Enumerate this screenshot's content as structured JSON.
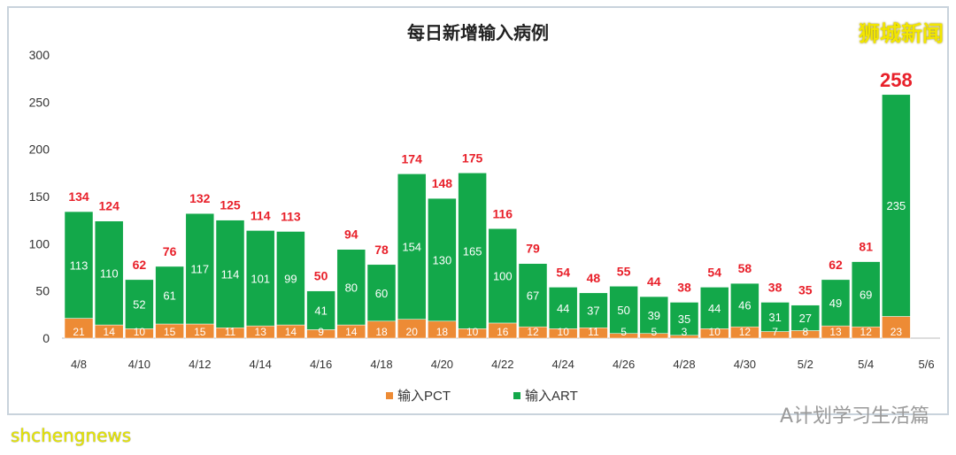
{
  "chart_data": {
    "type": "bar",
    "stacked": true,
    "title": "每日新增输入病例",
    "categories": [
      "4/8",
      "4/9",
      "4/10",
      "4/11",
      "4/12",
      "4/13",
      "4/14",
      "4/15",
      "4/16",
      "4/17",
      "4/18",
      "4/19",
      "4/20",
      "4/21",
      "4/22",
      "4/23",
      "4/24",
      "4/25",
      "4/26",
      "4/27",
      "4/28",
      "4/29",
      "4/30",
      "5/1",
      "5/2",
      "5/3",
      "5/4",
      "5/5"
    ],
    "x_tick_labels": [
      "4/8",
      "4/10",
      "4/12",
      "4/14",
      "4/16",
      "4/18",
      "4/20",
      "4/22",
      "4/24",
      "4/26",
      "4/28",
      "4/30",
      "5/2",
      "5/4",
      "5/6"
    ],
    "series": [
      {
        "name": "输入PCT",
        "color": "#ed8b35",
        "values": [
          21,
          14,
          10,
          15,
          15,
          11,
          13,
          14,
          9,
          14,
          18,
          20,
          18,
          10,
          16,
          12,
          10,
          11,
          5,
          5,
          3,
          10,
          12,
          7,
          8,
          13,
          12,
          23
        ]
      },
      {
        "name": "输入ART",
        "color": "#13a84a",
        "values": [
          113,
          110,
          52,
          61,
          117,
          114,
          101,
          99,
          41,
          80,
          60,
          154,
          130,
          165,
          100,
          67,
          44,
          37,
          50,
          39,
          35,
          44,
          46,
          31,
          27,
          49,
          69,
          235
        ]
      }
    ],
    "totals": [
      134,
      124,
      62,
      76,
      132,
      125,
      114,
      113,
      50,
      94,
      78,
      174,
      148,
      175,
      116,
      79,
      54,
      48,
      55,
      44,
      38,
      54,
      58,
      38,
      35,
      62,
      81,
      258
    ],
    "total_label_color": "#e8202a",
    "ylim": [
      0,
      300
    ],
    "y_ticks": [
      0,
      50,
      100,
      150,
      200,
      250,
      300
    ],
    "grid": false,
    "legend": "bottom"
  },
  "watermarks": {
    "top_right": "狮城新闻",
    "bottom_left": "shchengnews",
    "bottom_right": "A计划学习生活篇"
  }
}
